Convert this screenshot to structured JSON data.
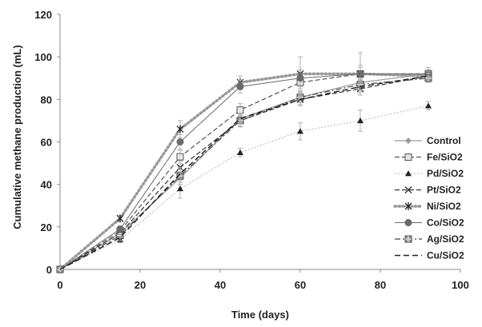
{
  "chart_data": {
    "type": "line",
    "title": "",
    "xlabel": "Time (days)",
    "ylabel": "Cumulative methane production (mL)",
    "xlim": [
      0,
      100
    ],
    "ylim": [
      0,
      120
    ],
    "x_ticks": [
      0,
      20,
      40,
      60,
      80,
      100
    ],
    "y_ticks": [
      0,
      20,
      40,
      60,
      80,
      100,
      120
    ],
    "grid": false,
    "legend_position": "right",
    "x": [
      0,
      15,
      30,
      45,
      60,
      75,
      92
    ],
    "series": [
      {
        "name": "Control",
        "color": "#9a9a9a",
        "dash": "",
        "width": 1.2,
        "marker": "diamond",
        "values": [
          0,
          17,
          43,
          71,
          81,
          88,
          92
        ],
        "errors": [
          0,
          1.5,
          3,
          2.5,
          2.5,
          2,
          2
        ]
      },
      {
        "name": "Fe/SiO2",
        "color": "#555555",
        "dash": "6 3",
        "width": 1.2,
        "marker": "square-open",
        "values": [
          0,
          18,
          53,
          75,
          88,
          92,
          92
        ],
        "errors": [
          0,
          1.5,
          3,
          3,
          3,
          3,
          2
        ]
      },
      {
        "name": "Pd/SiO2",
        "color": "#b5b5b5",
        "dash": "2 2",
        "width": 1,
        "marker": "triangle",
        "values": [
          0,
          14,
          38,
          55,
          65,
          70,
          77
        ],
        "errors": [
          0,
          1.5,
          4.5,
          2,
          4,
          5,
          2
        ]
      },
      {
        "name": "Pt/SiO2",
        "color": "#333333",
        "dash": "6 3",
        "width": 1.2,
        "marker": "x",
        "values": [
          0,
          17,
          48,
          70,
          80,
          85,
          91
        ],
        "errors": [
          0,
          1.5,
          3,
          3,
          3,
          3,
          2
        ]
      },
      {
        "name": "Ni/SiO2",
        "color": "#999999",
        "dash": "1.5 3.5",
        "width": 3.5,
        "marker": "star",
        "values": [
          0,
          24,
          66,
          88,
          92,
          92,
          91
        ],
        "errors": [
          0,
          1.5,
          4,
          3,
          8,
          10,
          3
        ]
      },
      {
        "name": "Co/SiO2",
        "color": "#6a6a6a",
        "dash": "",
        "width": 1,
        "marker": "circle",
        "values": [
          0,
          19,
          60,
          86,
          90,
          92,
          92
        ],
        "errors": [
          0,
          1.5,
          3.5,
          3,
          4,
          4,
          3
        ]
      },
      {
        "name": "Ag/SiO2",
        "color": "#444444",
        "dash": "7 3 2 3",
        "width": 1.2,
        "marker": "square-cross",
        "values": [
          0,
          16,
          44,
          70,
          81,
          87,
          90
        ],
        "errors": [
          0,
          1.5,
          3,
          2.5,
          2.5,
          2.5,
          2
        ]
      },
      {
        "name": "Cu/SiO2",
        "color": "#222222",
        "dash": "7 4",
        "width": 1.5,
        "marker": "none",
        "values": [
          0,
          15,
          45,
          71,
          80,
          86,
          91
        ],
        "errors": [
          0,
          1.5,
          3,
          2.5,
          2.5,
          2.5,
          2
        ]
      }
    ]
  }
}
